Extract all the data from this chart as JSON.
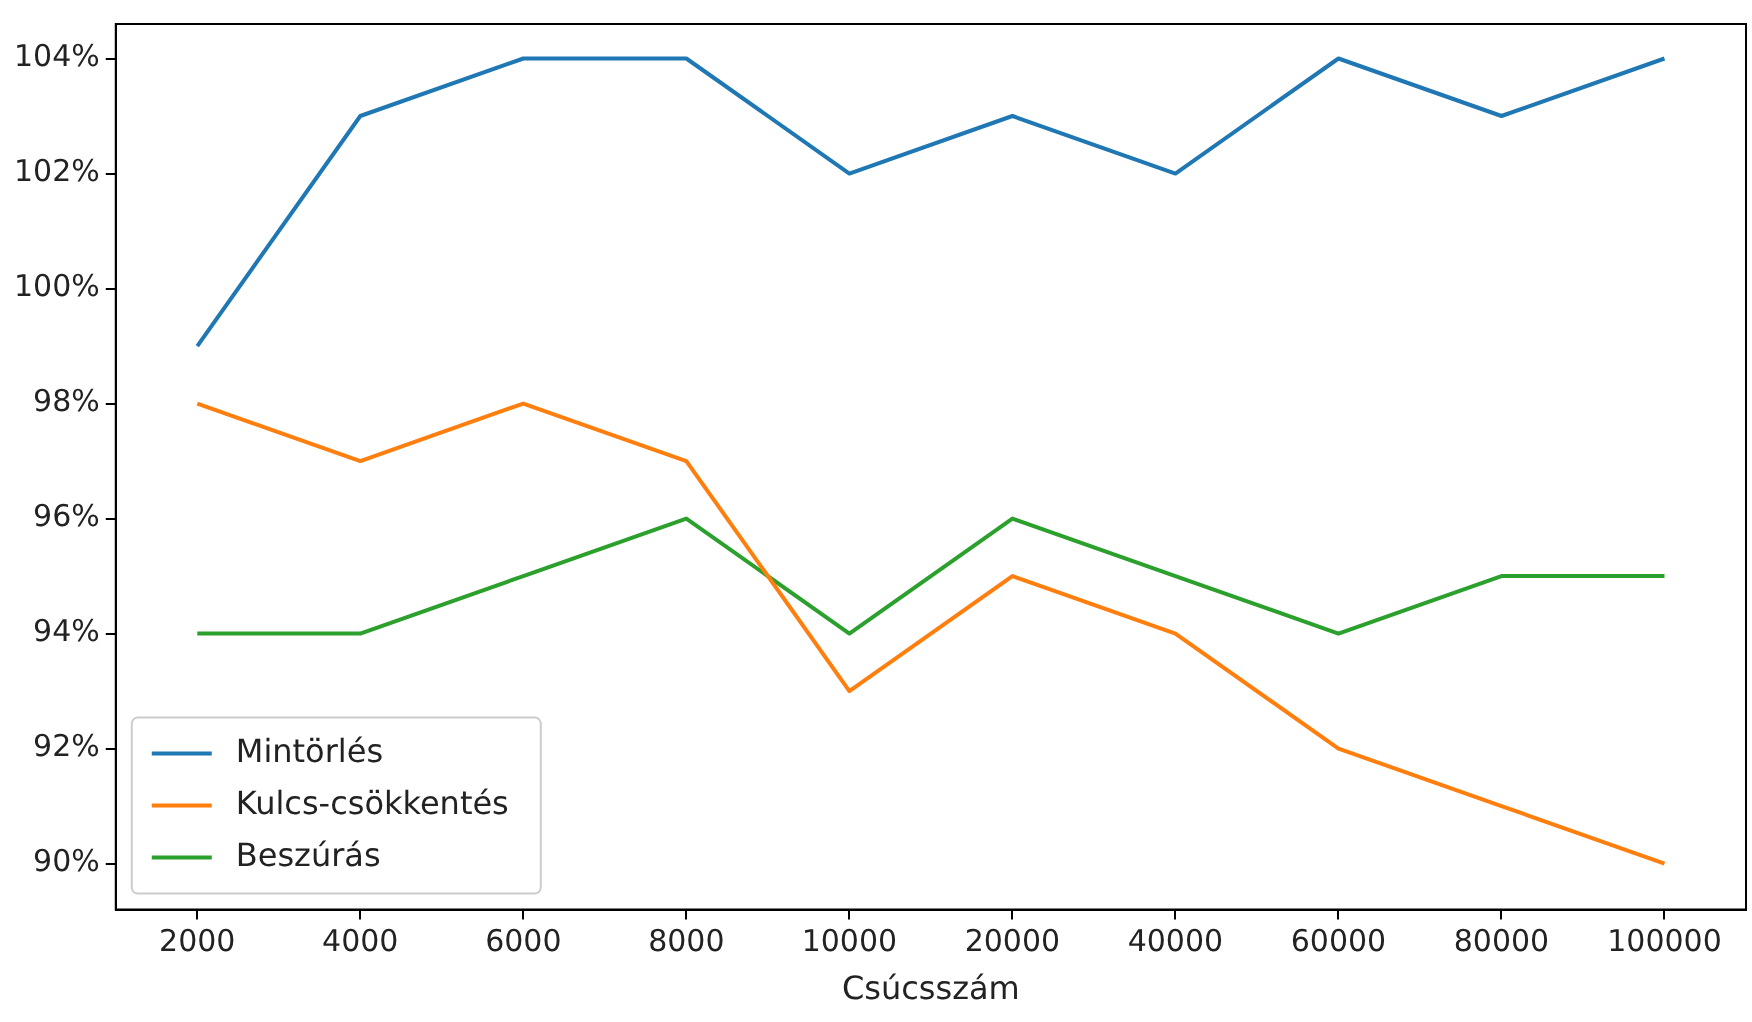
{
  "chart_data": {
    "type": "line",
    "xlabel": "Csúcsszám",
    "categories": [
      "2000",
      "4000",
      "6000",
      "8000",
      "10000",
      "20000",
      "40000",
      "60000",
      "80000",
      "100000"
    ],
    "series": [
      {
        "name": "Mintörlés",
        "color": "#1f77b4",
        "values": [
          99,
          103,
          104,
          104,
          102,
          103,
          102,
          104,
          103,
          104
        ]
      },
      {
        "name": "Kulcs-csökkentés",
        "color": "#ff7f0e",
        "values": [
          98,
          97,
          98,
          97,
          93,
          95,
          94,
          92,
          91,
          90
        ]
      },
      {
        "name": "Beszúrás",
        "color": "#2ca02c",
        "values": [
          94,
          94,
          95,
          96,
          94,
          96,
          95,
          94,
          95,
          95
        ]
      }
    ],
    "ylim": [
      89.2,
      104.6
    ],
    "yticks": [
      {
        "value": 90,
        "label": "90%"
      },
      {
        "value": 92,
        "label": "92%"
      },
      {
        "value": 94,
        "label": "94%"
      },
      {
        "value": 96,
        "label": "96%"
      },
      {
        "value": 98,
        "label": "98%"
      },
      {
        "value": 100,
        "label": "100%"
      },
      {
        "value": 102,
        "label": "102%"
      },
      {
        "value": 104,
        "label": "104%"
      }
    ],
    "legend": "bottom left",
    "grid": false,
    "marker": "none",
    "line_style": "solid"
  }
}
